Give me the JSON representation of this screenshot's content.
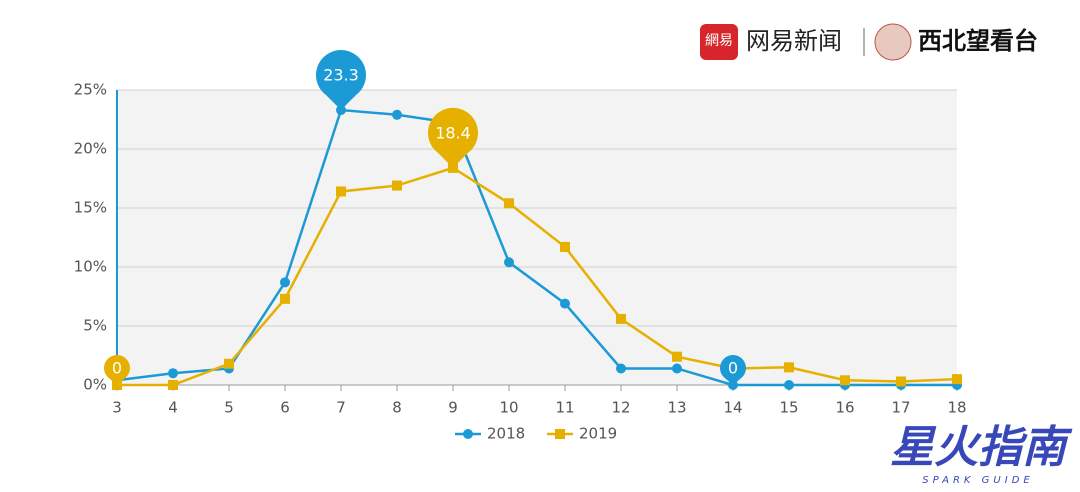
{
  "branding": {
    "news_icon": "網易",
    "news": "网易新闻",
    "site": "西北望看台",
    "watermark": "星火指南",
    "watermark_sub": "SPARK GUIDE"
  },
  "chart_data": {
    "type": "line",
    "x": [
      3,
      4,
      5,
      6,
      7,
      8,
      9,
      10,
      11,
      12,
      13,
      14,
      15,
      16,
      17,
      18
    ],
    "xlim": [
      3,
      18
    ],
    "xticks": [
      3,
      4,
      5,
      6,
      7,
      8,
      9,
      10,
      11,
      12,
      13,
      14,
      15,
      16,
      17,
      18
    ],
    "ylim": [
      0,
      25
    ],
    "yticks": [
      {
        "value": 0,
        "label": "0%"
      },
      {
        "value": 5,
        "label": "5%"
      },
      {
        "value": 10,
        "label": "10%"
      },
      {
        "value": 15,
        "label": "15%"
      },
      {
        "value": 20,
        "label": "20%"
      },
      {
        "value": 25,
        "label": "25%"
      }
    ],
    "grid": true,
    "legend": "bottom",
    "series": [
      {
        "name": "2018",
        "color": "#1b9ad6",
        "marker": "circle",
        "values": [
          0.4,
          1.0,
          1.4,
          8.7,
          23.3,
          22.9,
          22.2,
          10.4,
          6.9,
          1.4,
          1.4,
          0,
          0,
          0,
          0,
          0
        ],
        "value_labels": [
          null,
          null,
          null,
          null,
          "23.3",
          null,
          null,
          null,
          null,
          null,
          null,
          "0",
          null,
          null,
          null,
          null
        ]
      },
      {
        "name": "2019",
        "color": "#e5b000",
        "marker": "square",
        "values": [
          0,
          0,
          1.8,
          7.3,
          16.4,
          16.9,
          18.4,
          15.4,
          11.7,
          5.6,
          2.4,
          1.4,
          1.5,
          0.4,
          0.3,
          0.5
        ],
        "value_labels": [
          "0",
          null,
          null,
          null,
          null,
          null,
          "18.4",
          null,
          null,
          null,
          null,
          null,
          null,
          null,
          null,
          null
        ]
      }
    ]
  }
}
